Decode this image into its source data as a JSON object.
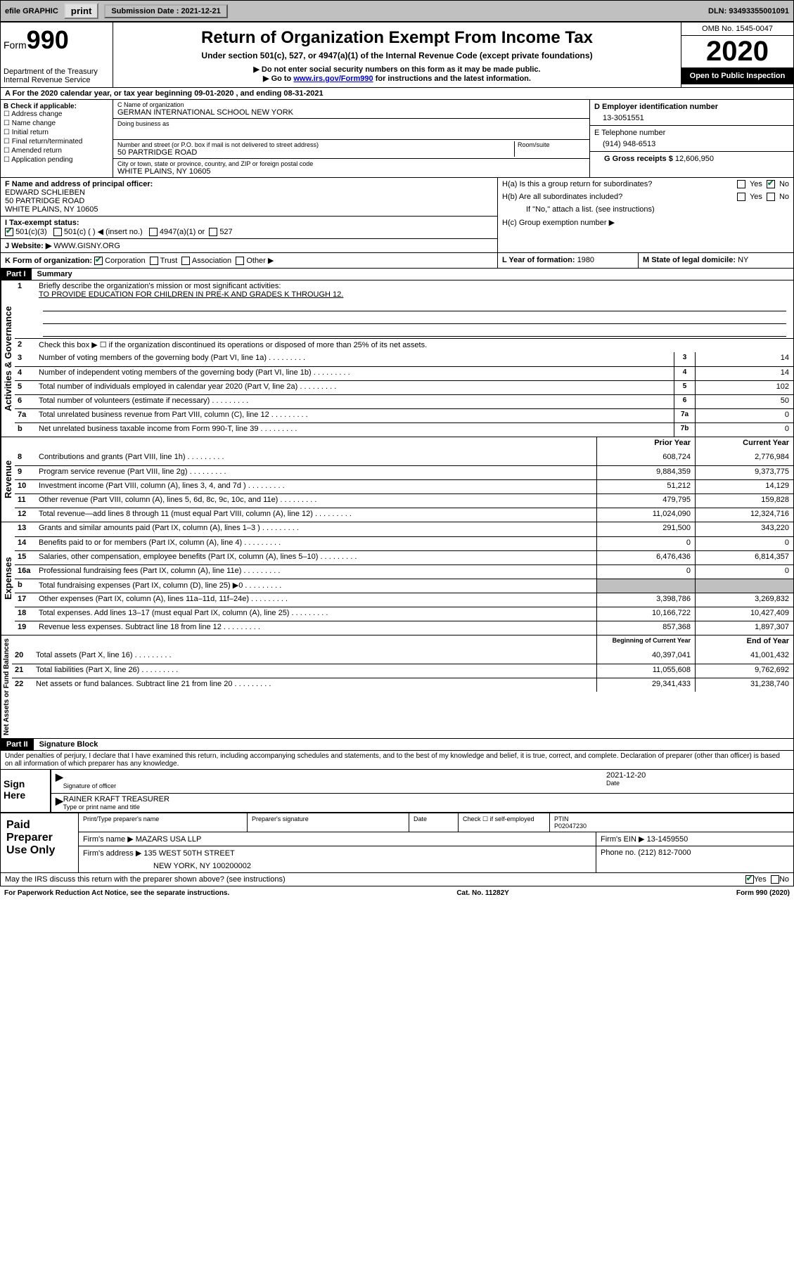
{
  "topbar": {
    "efile_label": "efile GRAPHIC",
    "print_btn": "print",
    "submission_label": "Submission Date : 2021-12-21",
    "dln": "DLN: 93493355001091"
  },
  "header": {
    "form_word": "Form",
    "form_num": "990",
    "dept": "Department of the Treasury\nInternal Revenue Service",
    "title": "Return of Organization Exempt From Income Tax",
    "subtitle": "Under section 501(c), 527, or 4947(a)(1) of the Internal Revenue Code (except private foundations)",
    "note1": "▶ Do not enter social security numbers on this form as it may be made public.",
    "note2_pre": "▶ Go to ",
    "note2_link": "www.irs.gov/Form990",
    "note2_post": " for instructions and the latest information.",
    "omb": "OMB No. 1545-0047",
    "year": "2020",
    "inspection": "Open to Public Inspection"
  },
  "row_a": "A For the 2020 calendar year, or tax year beginning 09-01-2020   , and ending 08-31-2021",
  "box_b": {
    "label": "B Check if applicable:",
    "items": [
      "Address change",
      "Name change",
      "Initial return",
      "Final return/terminated",
      "Amended return",
      "Application pending"
    ]
  },
  "box_c": {
    "name_lbl": "C Name of organization",
    "name": "GERMAN INTERNATIONAL SCHOOL NEW YORK",
    "dba_lbl": "Doing business as",
    "addr_lbl": "Number and street (or P.O. box if mail is not delivered to street address)",
    "room_lbl": "Room/suite",
    "addr": "50 PARTRIDGE ROAD",
    "city_lbl": "City or town, state or province, country, and ZIP or foreign postal code",
    "city": "WHITE PLAINS, NY  10605"
  },
  "box_d": {
    "lbl": "D Employer identification number",
    "val": "13-3051551"
  },
  "box_e": {
    "lbl": "E Telephone number",
    "val": "(914) 948-6513"
  },
  "box_g": {
    "lbl": "G Gross receipts $",
    "val": "12,606,950"
  },
  "box_f": {
    "lbl": "F Name and address of principal officer:",
    "name": "EDWARD SCHLIEBEN",
    "addr1": "50 PARTRIDGE ROAD",
    "addr2": "WHITE PLAINS, NY  10605"
  },
  "box_h": {
    "a": "H(a)  Is this a group return for subordinates?",
    "b": "H(b)  Are all subordinates included?",
    "b_note": "If \"No,\" attach a list. (see instructions)",
    "c": "H(c)  Group exemption number ▶",
    "yes": "Yes",
    "no": "No"
  },
  "box_i": {
    "lbl": "I Tax-exempt status:",
    "a": "501(c)(3)",
    "b": "501(c) (  ) ◀ (insert no.)",
    "c": "4947(a)(1) or",
    "d": "527"
  },
  "box_j": {
    "lbl": "J Website: ▶",
    "val": "WWW.GISNY.ORG"
  },
  "box_k": {
    "lbl": "K Form of organization:",
    "corp": "Corporation",
    "trust": "Trust",
    "assoc": "Association",
    "other": "Other ▶"
  },
  "box_l": {
    "lbl": "L Year of formation:",
    "val": "1980"
  },
  "box_m": {
    "lbl": "M State of legal domicile:",
    "val": "NY"
  },
  "part1": {
    "label": "Part I",
    "title": "Summary"
  },
  "summary": {
    "sec1_label": "Activities & Governance",
    "line1_lbl": "Briefly describe the organization's mission or most significant activities:",
    "line1_val": "TO PROVIDE EDUCATION FOR CHILDREN IN PRE-K AND GRADES K THROUGH 12.",
    "line2": "Check this box ▶ ☐  if the organization discontinued its operations or disposed of more than 25% of its net assets.",
    "rows_ag": [
      {
        "n": "3",
        "d": "Number of voting members of the governing body (Part VI, line 1a)",
        "b": "3",
        "v": "14"
      },
      {
        "n": "4",
        "d": "Number of independent voting members of the governing body (Part VI, line 1b)",
        "b": "4",
        "v": "14"
      },
      {
        "n": "5",
        "d": "Total number of individuals employed in calendar year 2020 (Part V, line 2a)",
        "b": "5",
        "v": "102"
      },
      {
        "n": "6",
        "d": "Total number of volunteers (estimate if necessary)",
        "b": "6",
        "v": "50"
      },
      {
        "n": "7a",
        "d": "Total unrelated business revenue from Part VIII, column (C), line 12",
        "b": "7a",
        "v": "0"
      },
      {
        "n": "b",
        "d": "Net unrelated business taxable income from Form 990-T, line 39",
        "b": "7b",
        "v": "0"
      }
    ],
    "col_prior": "Prior Year",
    "col_current": "Current Year",
    "sec2_label": "Revenue",
    "rows_rev": [
      {
        "n": "8",
        "d": "Contributions and grants (Part VIII, line 1h)",
        "p": "608,724",
        "c": "2,776,984"
      },
      {
        "n": "9",
        "d": "Program service revenue (Part VIII, line 2g)",
        "p": "9,884,359",
        "c": "9,373,775"
      },
      {
        "n": "10",
        "d": "Investment income (Part VIII, column (A), lines 3, 4, and 7d )",
        "p": "51,212",
        "c": "14,129"
      },
      {
        "n": "11",
        "d": "Other revenue (Part VIII, column (A), lines 5, 6d, 8c, 9c, 10c, and 11e)",
        "p": "479,795",
        "c": "159,828"
      },
      {
        "n": "12",
        "d": "Total revenue—add lines 8 through 11 (must equal Part VIII, column (A), line 12)",
        "p": "11,024,090",
        "c": "12,324,716"
      }
    ],
    "sec3_label": "Expenses",
    "rows_exp": [
      {
        "n": "13",
        "d": "Grants and similar amounts paid (Part IX, column (A), lines 1–3 )",
        "p": "291,500",
        "c": "343,220"
      },
      {
        "n": "14",
        "d": "Benefits paid to or for members (Part IX, column (A), line 4)",
        "p": "0",
        "c": "0"
      },
      {
        "n": "15",
        "d": "Salaries, other compensation, employee benefits (Part IX, column (A), lines 5–10)",
        "p": "6,476,436",
        "c": "6,814,357"
      },
      {
        "n": "16a",
        "d": "Professional fundraising fees (Part IX, column (A), line 11e)",
        "p": "0",
        "c": "0"
      },
      {
        "n": "b",
        "d": "Total fundraising expenses (Part IX, column (D), line 25) ▶0",
        "p": "",
        "c": "",
        "shaded": true
      },
      {
        "n": "17",
        "d": "Other expenses (Part IX, column (A), lines 11a–11d, 11f–24e)",
        "p": "3,398,786",
        "c": "3,269,832"
      },
      {
        "n": "18",
        "d": "Total expenses. Add lines 13–17 (must equal Part IX, column (A), line 25)",
        "p": "10,166,722",
        "c": "10,427,409"
      },
      {
        "n": "19",
        "d": "Revenue less expenses. Subtract line 18 from line 12",
        "p": "857,368",
        "c": "1,897,307"
      }
    ],
    "sec4_label": "Net Assets or Fund Balances",
    "col_beg": "Beginning of Current Year",
    "col_end": "End of Year",
    "rows_na": [
      {
        "n": "20",
        "d": "Total assets (Part X, line 16)",
        "p": "40,397,041",
        "c": "41,001,432"
      },
      {
        "n": "21",
        "d": "Total liabilities (Part X, line 26)",
        "p": "11,055,608",
        "c": "9,762,692"
      },
      {
        "n": "22",
        "d": "Net assets or fund balances. Subtract line 21 from line 20",
        "p": "29,341,433",
        "c": "31,238,740"
      }
    ]
  },
  "part2": {
    "label": "Part II",
    "title": "Signature Block"
  },
  "perjury": "Under penalties of perjury, I declare that I have examined this return, including accompanying schedules and statements, and to the best of my knowledge and belief, it is true, correct, and complete. Declaration of preparer (other than officer) is based on all information of which preparer has any knowledge.",
  "sign": {
    "label": "Sign Here",
    "sig_lbl": "Signature of officer",
    "date_lbl": "Date",
    "date_val": "2021-12-20",
    "name": "RAINER KRAFT TREASURER",
    "name_lbl": "Type or print name and title"
  },
  "preparer": {
    "label": "Paid Preparer Use Only",
    "h1": "Print/Type preparer's name",
    "h2": "Preparer's signature",
    "h3": "Date",
    "h4_a": "Check ☐ if self-employed",
    "h4_b": "PTIN",
    "ptin": "P02047230",
    "firm_lbl": "Firm's name    ▶",
    "firm": "MAZARS USA LLP",
    "ein_lbl": "Firm's EIN ▶",
    "ein": "13-1459550",
    "addr_lbl": "Firm's address ▶",
    "addr1": "135 WEST 50TH STREET",
    "addr2": "NEW YORK, NY  100200002",
    "phone_lbl": "Phone no.",
    "phone": "(212) 812-7000"
  },
  "discuss": {
    "q": "May the IRS discuss this return with the preparer shown above? (see instructions)",
    "yes": "Yes",
    "no": "No"
  },
  "footer": {
    "left": "For Paperwork Reduction Act Notice, see the separate instructions.",
    "mid": "Cat. No. 11282Y",
    "right": "Form 990 (2020)"
  }
}
